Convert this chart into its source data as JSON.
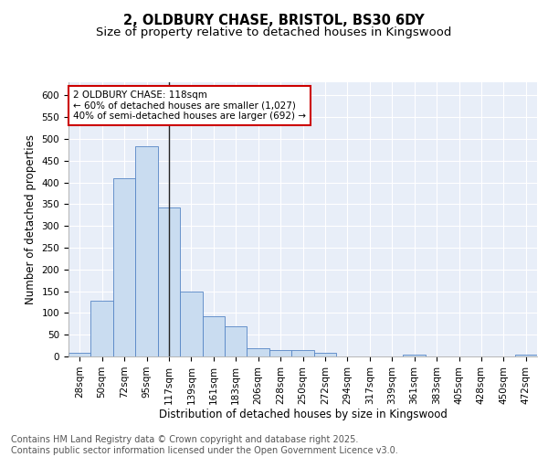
{
  "title_line1": "2, OLDBURY CHASE, BRISTOL, BS30 6DY",
  "title_line2": "Size of property relative to detached houses in Kingswood",
  "xlabel": "Distribution of detached houses by size in Kingswood",
  "ylabel": "Number of detached properties",
  "categories": [
    "28sqm",
    "50sqm",
    "72sqm",
    "95sqm",
    "117sqm",
    "139sqm",
    "161sqm",
    "183sqm",
    "206sqm",
    "228sqm",
    "250sqm",
    "272sqm",
    "294sqm",
    "317sqm",
    "339sqm",
    "361sqm",
    "383sqm",
    "405sqm",
    "428sqm",
    "450sqm",
    "472sqm"
  ],
  "values": [
    8,
    128,
    410,
    483,
    343,
    149,
    92,
    70,
    19,
    14,
    14,
    8,
    0,
    0,
    0,
    4,
    0,
    0,
    0,
    0,
    4
  ],
  "bar_color": "#c9dcf0",
  "bar_edge_color": "#5585c5",
  "vline_x_index": 4,
  "vline_color": "#222222",
  "annotation_text": "2 OLDBURY CHASE: 118sqm\n← 60% of detached houses are smaller (1,027)\n40% of semi-detached houses are larger (692) →",
  "annotation_box_color": "#ffffff",
  "annotation_box_edge": "#cc0000",
  "ylim": [
    0,
    630
  ],
  "yticks": [
    0,
    50,
    100,
    150,
    200,
    250,
    300,
    350,
    400,
    450,
    500,
    550,
    600
  ],
  "background_color": "#e8eef8",
  "grid_color": "#ffffff",
  "footer_text": "Contains HM Land Registry data © Crown copyright and database right 2025.\nContains public sector information licensed under the Open Government Licence v3.0.",
  "title_fontsize": 10.5,
  "subtitle_fontsize": 9.5,
  "axis_label_fontsize": 8.5,
  "tick_fontsize": 7.5,
  "footer_fontsize": 7,
  "annot_fontsize": 7.5
}
